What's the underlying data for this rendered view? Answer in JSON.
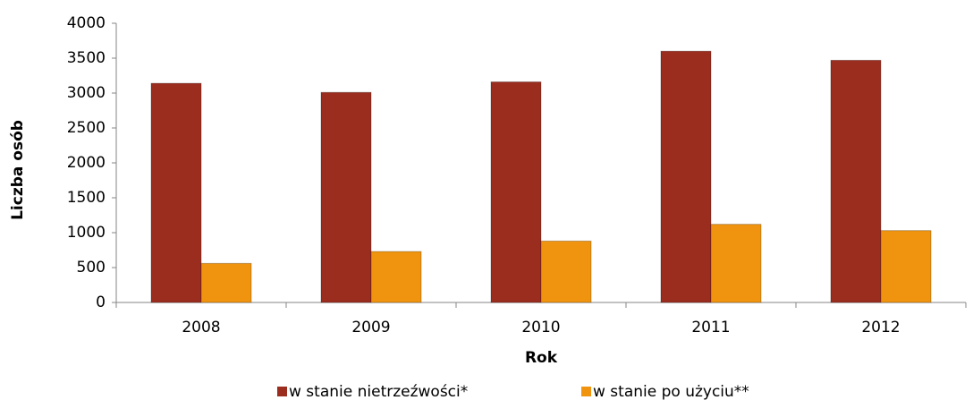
{
  "chart_data": {
    "type": "bar",
    "x_label": "Rok",
    "y_label": "Liczba osób",
    "categories": [
      "2008",
      "2009",
      "2010",
      "2011",
      "2012"
    ],
    "series": [
      {
        "name": "w stanie nietrzeźwości*",
        "color": "#9b2d1f",
        "values": [
          3140,
          3010,
          3160,
          3600,
          3470
        ]
      },
      {
        "name": "w stanie po użyciu**",
        "color": "#f0940f",
        "values": [
          560,
          730,
          880,
          1120,
          1030
        ]
      }
    ],
    "ylim": [
      0,
      4000
    ],
    "yticks": [
      0,
      500,
      1000,
      1500,
      2000,
      2500,
      3000,
      3500,
      4000
    ],
    "grid": false
  }
}
